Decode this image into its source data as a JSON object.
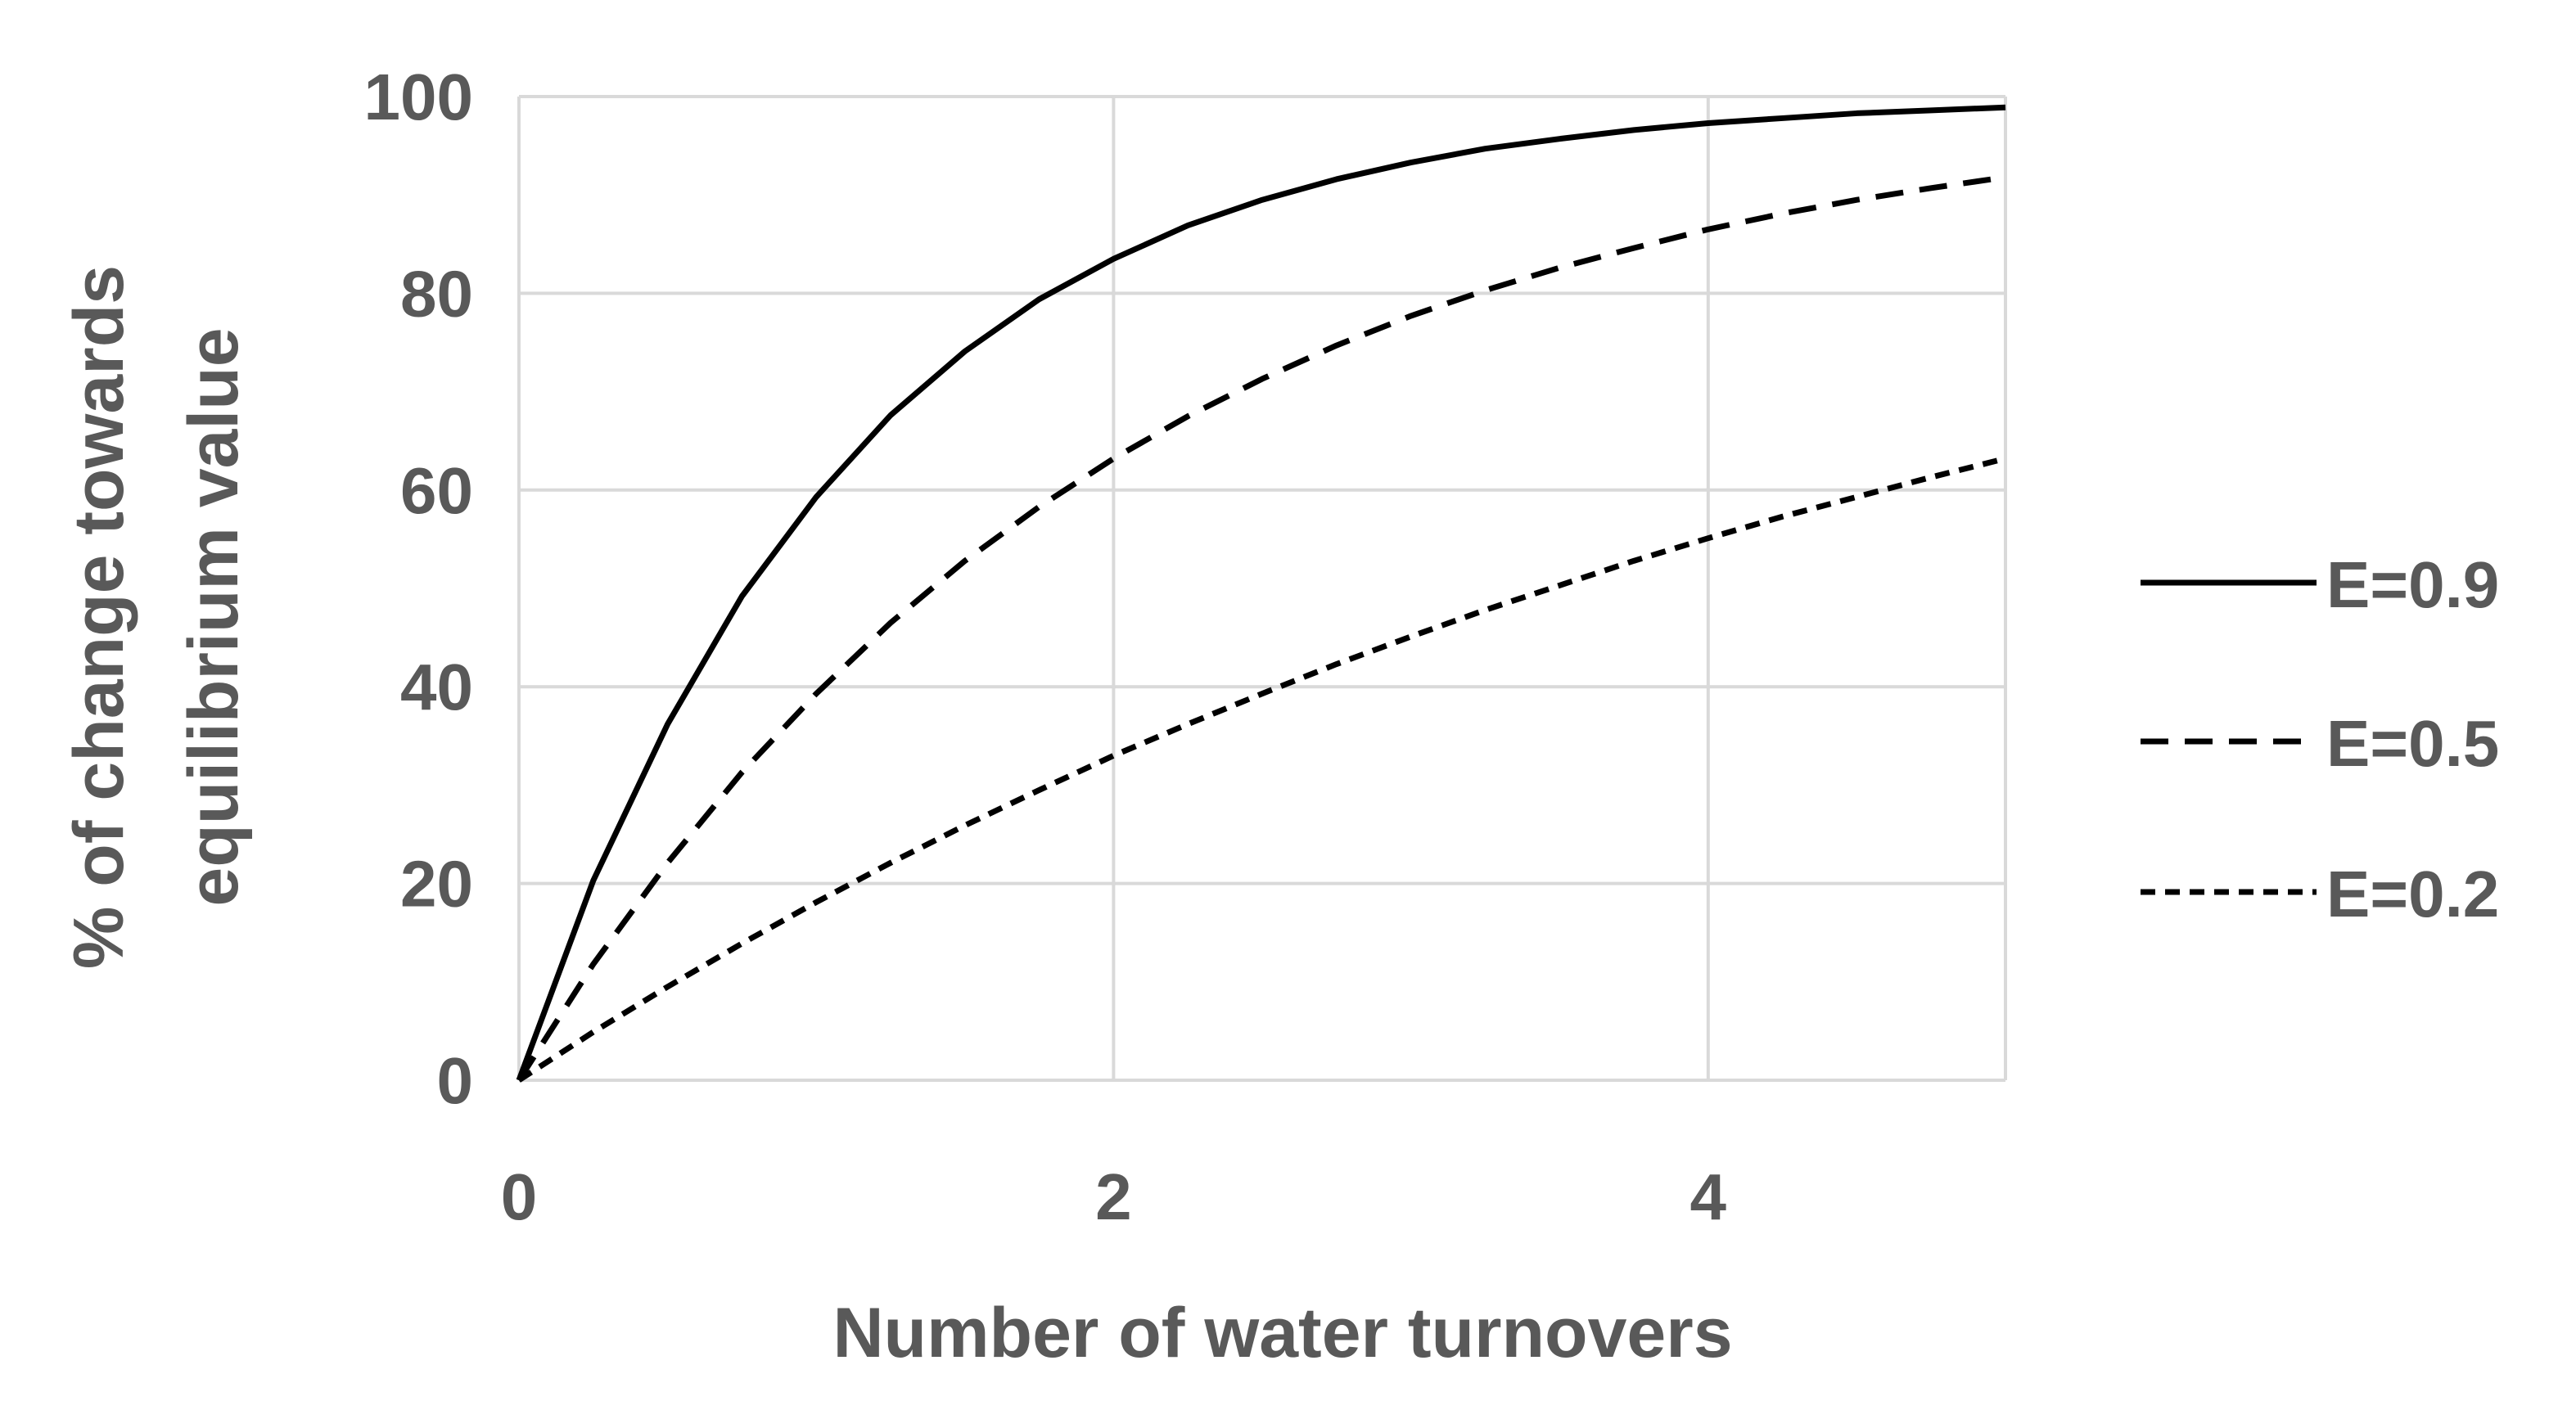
{
  "chart_data": {
    "type": "line",
    "xlabel": "Number of water turnovers",
    "ylabel": [
      "% of change towards",
      "equilibrium value"
    ],
    "xlim": [
      0,
      5
    ],
    "ylim": [
      0,
      100
    ],
    "x_ticks": [
      0,
      2,
      4
    ],
    "y_ticks": [
      0,
      20,
      40,
      60,
      80,
      100
    ],
    "x_tick_labels": [
      "0",
      "2",
      "4"
    ],
    "y_tick_labels": [
      "0",
      "20",
      "40",
      "60",
      "80",
      "100"
    ],
    "grid": true,
    "legend_position": "right",
    "x": [
      0,
      0.25,
      0.5,
      0.75,
      1,
      1.25,
      1.5,
      1.75,
      2,
      2.25,
      2.5,
      2.75,
      3,
      3.25,
      3.5,
      3.75,
      4,
      4.25,
      4.5,
      4.75,
      5
    ],
    "series": [
      {
        "name": "E=0.9",
        "dash": "solid",
        "values": [
          0,
          20.3,
          36.2,
          49.2,
          59.3,
          67.6,
          74.1,
          79.4,
          83.5,
          86.9,
          89.5,
          91.6,
          93.3,
          94.7,
          95.7,
          96.6,
          97.3,
          97.8,
          98.3,
          98.6,
          98.9
        ]
      },
      {
        "name": "E=0.5",
        "dash": "dashed",
        "values": [
          0,
          11.8,
          22.1,
          31.3,
          39.3,
          46.5,
          52.8,
          58.3,
          63.2,
          67.5,
          71.3,
          74.7,
          77.7,
          80.3,
          82.6,
          84.6,
          86.5,
          88.1,
          89.5,
          90.7,
          91.8
        ]
      },
      {
        "name": "E=0.2",
        "dash": "dotted",
        "values": [
          0,
          4.9,
          9.5,
          13.9,
          18.1,
          22.1,
          25.9,
          29.5,
          33.0,
          36.2,
          39.3,
          42.3,
          45.1,
          47.8,
          50.3,
          52.8,
          55.1,
          57.3,
          59.3,
          61.3,
          63.2
        ]
      }
    ]
  },
  "colors": {
    "line": "#000000",
    "grid": "#d9d9d9",
    "text": "#595959"
  }
}
